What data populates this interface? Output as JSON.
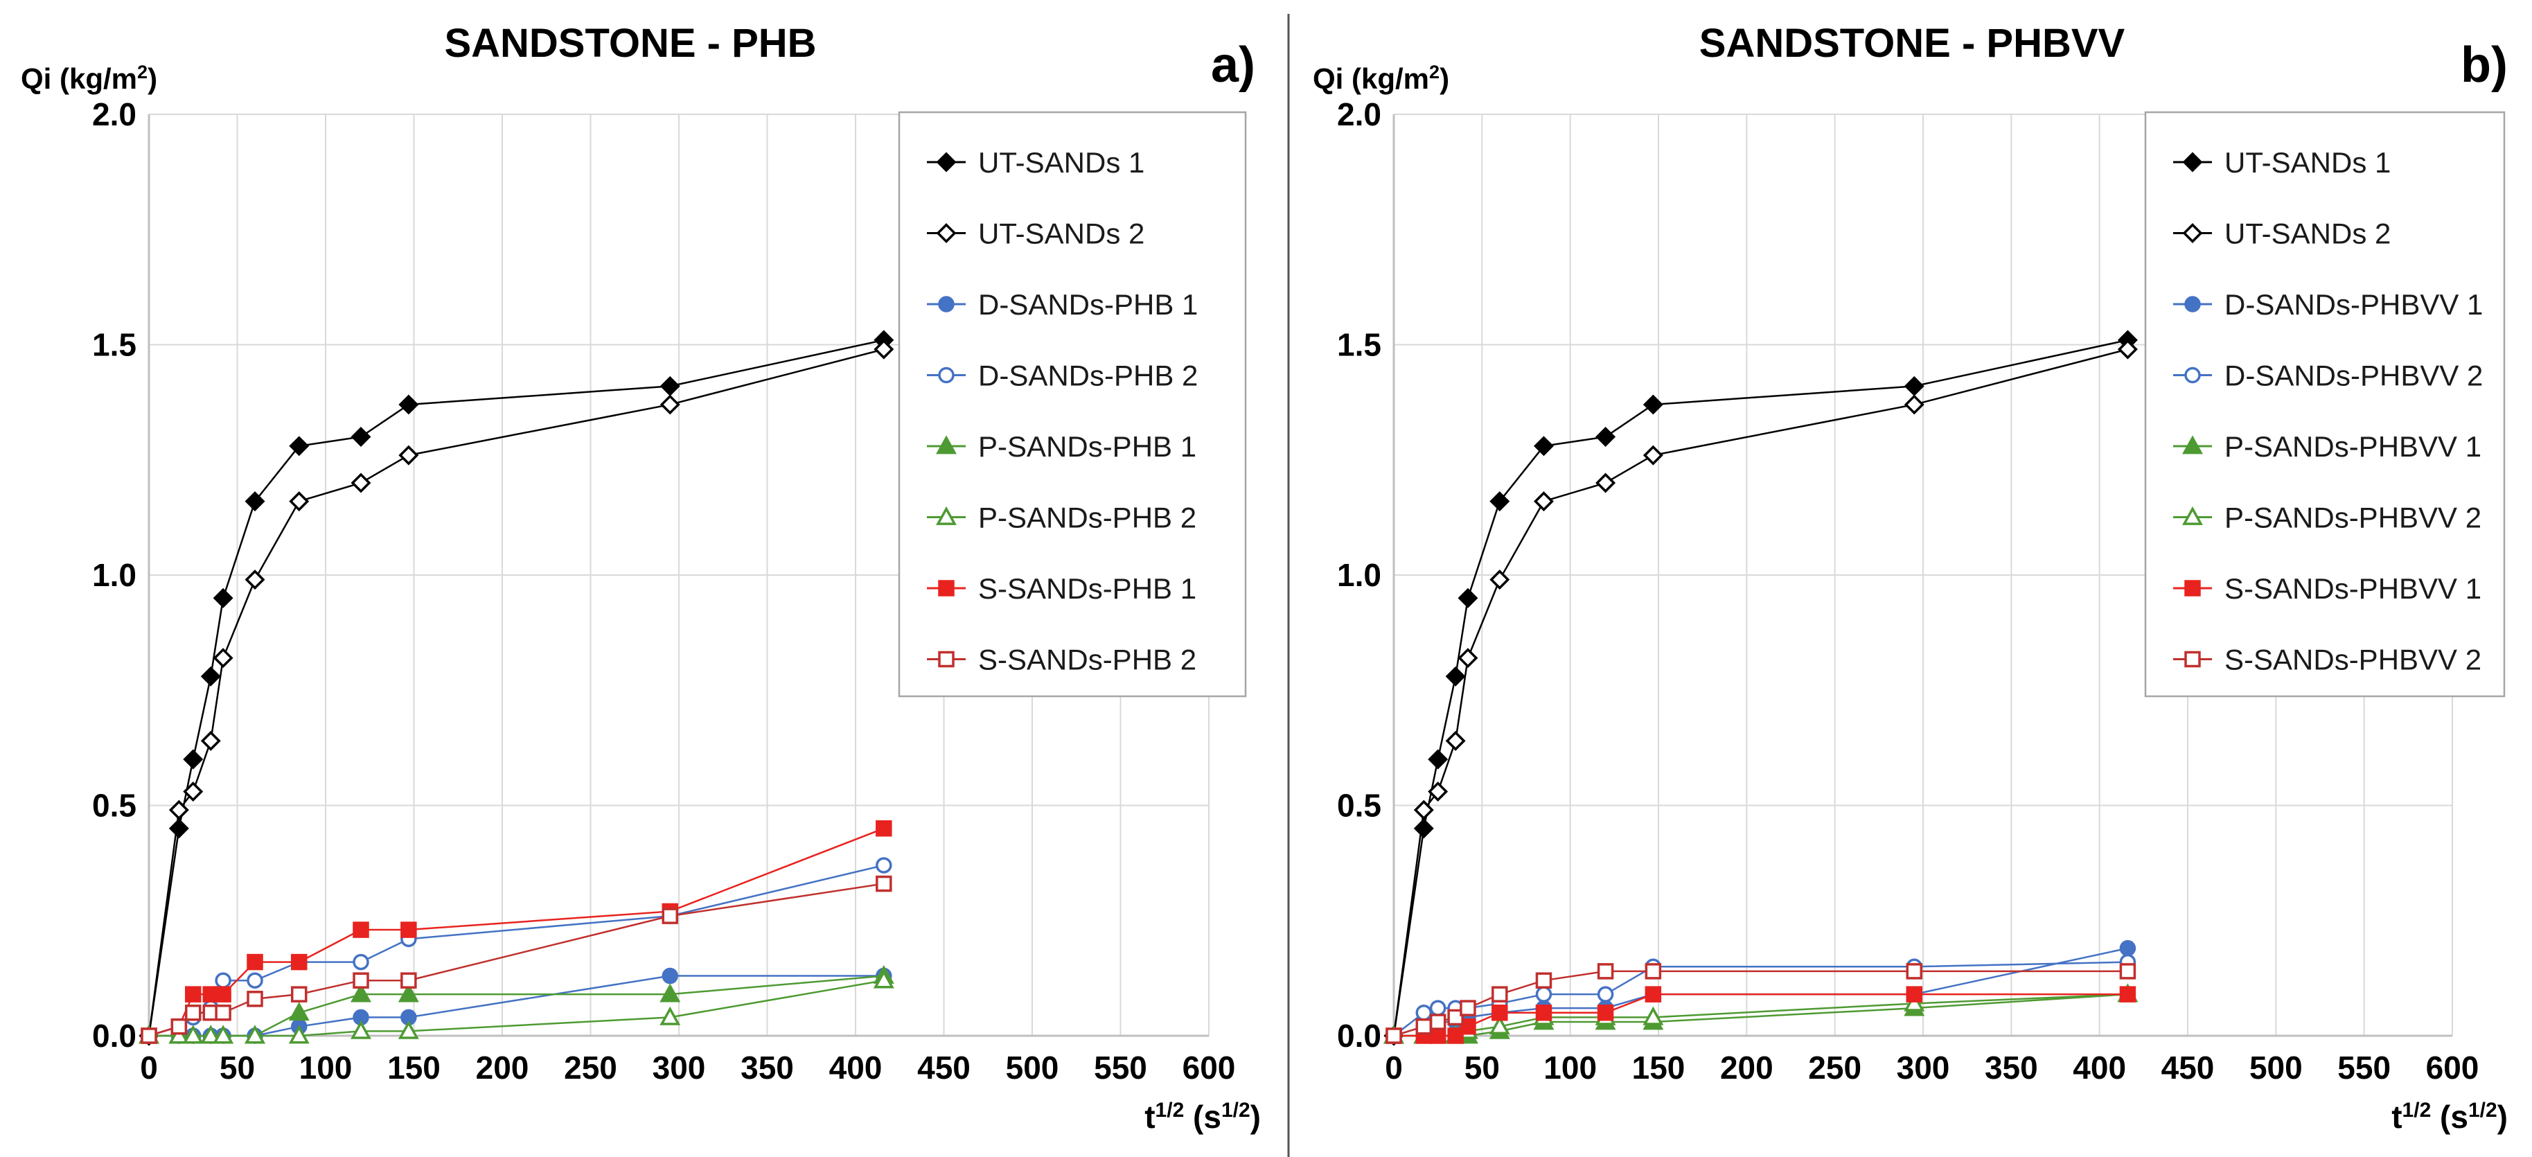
{
  "chart_data": [
    {
      "panel_label": "a)",
      "type": "line",
      "title": "SANDSTONE - PHB",
      "ylabel": "Qi (kg/m",
      "ylabel_sup": "2",
      "ylabel_close": ")",
      "xlabel_base": "t",
      "xlabel_sup": "1/2",
      "xlabel_mid": " (s",
      "xlabel_sup2": "1/2",
      "xlabel_close": ")",
      "xlim": [
        0,
        600
      ],
      "ylim": [
        0,
        2.0
      ],
      "xticks": [
        0,
        50,
        100,
        150,
        200,
        250,
        300,
        350,
        400,
        450,
        500,
        550,
        600
      ],
      "yticks": [
        "0.0",
        "0.5",
        "1.0",
        "1.5",
        "2.0"
      ],
      "grid": true,
      "legend_position": "top-right",
      "series": [
        {
          "name": "UT-SANDs 1",
          "color": "#000000",
          "marker": "diamond-filled",
          "x": [
            0,
            17,
            25,
            35,
            42,
            60,
            85,
            120,
            147,
            295,
            416
          ],
          "y": [
            0,
            0.45,
            0.6,
            0.78,
            0.95,
            1.16,
            1.28,
            1.3,
            1.37,
            1.41,
            1.51
          ]
        },
        {
          "name": "UT-SANDs 2",
          "color": "#000000",
          "marker": "diamond-open",
          "x": [
            0,
            17,
            25,
            35,
            42,
            60,
            85,
            120,
            147,
            295,
            416
          ],
          "y": [
            0,
            0.49,
            0.53,
            0.64,
            0.82,
            0.99,
            1.16,
            1.2,
            1.26,
            1.37,
            1.49
          ]
        },
        {
          "name": "D-SANDs-PHB 1",
          "color": "#4472c4",
          "marker": "circle-filled",
          "x": [
            0,
            17,
            25,
            35,
            42,
            60,
            85,
            120,
            147,
            295,
            416
          ],
          "y": [
            0,
            0,
            0,
            0,
            0,
            0,
            0.02,
            0.04,
            0.04,
            0.13,
            0.13
          ]
        },
        {
          "name": "D-SANDs-PHB 2",
          "color": "#4472c4",
          "marker": "circle-open",
          "x": [
            0,
            17,
            25,
            35,
            42,
            60,
            85,
            120,
            147,
            295,
            416
          ],
          "y": [
            0,
            0.02,
            0.04,
            0.06,
            0.12,
            0.12,
            0.16,
            0.16,
            0.21,
            0.26,
            0.37
          ]
        },
        {
          "name": "P-SANDs-PHB 1",
          "color": "#4e9a32",
          "marker": "triangle-filled",
          "x": [
            0,
            17,
            25,
            35,
            42,
            60,
            85,
            120,
            147,
            295,
            416
          ],
          "y": [
            0,
            0,
            0,
            0,
            0,
            0,
            0.05,
            0.09,
            0.09,
            0.09,
            0.13
          ]
        },
        {
          "name": "P-SANDs-PHB 2",
          "color": "#4e9a32",
          "marker": "triangle-open",
          "x": [
            0,
            17,
            25,
            35,
            42,
            60,
            85,
            120,
            147,
            295,
            416
          ],
          "y": [
            0,
            0,
            0,
            0,
            0,
            0,
            0,
            0.01,
            0.01,
            0.04,
            0.12
          ]
        },
        {
          "name": "S-SANDs-PHB 1",
          "color": "#e8231f",
          "marker": "square-filled",
          "x": [
            0,
            17,
            25,
            35,
            42,
            60,
            85,
            120,
            147,
            295,
            416
          ],
          "y": [
            0,
            0.02,
            0.09,
            0.09,
            0.09,
            0.16,
            0.16,
            0.23,
            0.23,
            0.27,
            0.45
          ]
        },
        {
          "name": "S-SANDs-PHB 2",
          "color": "#c0302e",
          "marker": "square-open",
          "x": [
            0,
            17,
            25,
            35,
            42,
            60,
            85,
            120,
            147,
            295,
            416
          ],
          "y": [
            0,
            0.02,
            0.05,
            0.05,
            0.05,
            0.08,
            0.09,
            0.12,
            0.12,
            0.26,
            0.33
          ]
        }
      ]
    },
    {
      "panel_label": "b)",
      "type": "line",
      "title": "SANDSTONE - PHBVV",
      "ylabel": "Qi (kg/m",
      "ylabel_sup": "2",
      "ylabel_close": ")",
      "xlabel_base": "t",
      "xlabel_sup": "1/2",
      "xlabel_mid": " (s",
      "xlabel_sup2": "1/2",
      "xlabel_close": ")",
      "xlim": [
        0,
        600
      ],
      "ylim": [
        0,
        2.0
      ],
      "xticks": [
        0,
        50,
        100,
        150,
        200,
        250,
        300,
        350,
        400,
        450,
        500,
        550,
        600
      ],
      "yticks": [
        "0.0",
        "0.5",
        "1.0",
        "1.5",
        "2.0"
      ],
      "grid": true,
      "legend_position": "top-right",
      "series": [
        {
          "name": "UT-SANDs 1",
          "color": "#000000",
          "marker": "diamond-filled",
          "x": [
            0,
            17,
            25,
            35,
            42,
            60,
            85,
            120,
            147,
            295,
            416
          ],
          "y": [
            0,
            0.45,
            0.6,
            0.78,
            0.95,
            1.16,
            1.28,
            1.3,
            1.37,
            1.41,
            1.51
          ]
        },
        {
          "name": "UT-SANDs 2",
          "color": "#000000",
          "marker": "diamond-open",
          "x": [
            0,
            17,
            25,
            35,
            42,
            60,
            85,
            120,
            147,
            295,
            416
          ],
          "y": [
            0,
            0.49,
            0.53,
            0.64,
            0.82,
            0.99,
            1.16,
            1.2,
            1.26,
            1.37,
            1.49
          ]
        },
        {
          "name": "D-SANDs-PHBVV 1",
          "color": "#4472c4",
          "marker": "circle-filled",
          "x": [
            0,
            17,
            25,
            35,
            42,
            60,
            85,
            120,
            147,
            295,
            416
          ],
          "y": [
            0,
            0.02,
            0.03,
            0.03,
            0.04,
            0.05,
            0.06,
            0.06,
            0.09,
            0.09,
            0.19
          ]
        },
        {
          "name": "D-SANDs-PHBVV 2",
          "color": "#4472c4",
          "marker": "circle-open",
          "x": [
            0,
            17,
            25,
            35,
            42,
            60,
            85,
            120,
            147,
            295,
            416
          ],
          "y": [
            0,
            0.05,
            0.06,
            0.06,
            0.06,
            0.07,
            0.09,
            0.09,
            0.15,
            0.15,
            0.16
          ]
        },
        {
          "name": "P-SANDs-PHBVV 1",
          "color": "#4e9a32",
          "marker": "triangle-filled",
          "x": [
            0,
            17,
            25,
            35,
            42,
            60,
            85,
            120,
            147,
            295,
            416
          ],
          "y": [
            0,
            0,
            0,
            0,
            0,
            0.01,
            0.03,
            0.03,
            0.03,
            0.06,
            0.09
          ]
        },
        {
          "name": "P-SANDs-PHBVV 2",
          "color": "#4e9a32",
          "marker": "triangle-open",
          "x": [
            0,
            17,
            25,
            35,
            42,
            60,
            85,
            120,
            147,
            295,
            416
          ],
          "y": [
            0,
            0,
            0,
            0,
            0.01,
            0.02,
            0.04,
            0.04,
            0.04,
            0.07,
            0.09
          ]
        },
        {
          "name": "S-SANDs-PHBVV 1",
          "color": "#e8231f",
          "marker": "square-filled",
          "x": [
            0,
            17,
            25,
            35,
            42,
            60,
            85,
            120,
            147,
            295,
            416
          ],
          "y": [
            0,
            0,
            0,
            0,
            0.02,
            0.05,
            0.05,
            0.05,
            0.09,
            0.09,
            0.09
          ]
        },
        {
          "name": "S-SANDs-PHBVV 2",
          "color": "#c0302e",
          "marker": "square-open",
          "x": [
            0,
            17,
            25,
            35,
            42,
            60,
            85,
            120,
            147,
            295,
            416
          ],
          "y": [
            0,
            0.02,
            0.03,
            0.04,
            0.06,
            0.09,
            0.12,
            0.14,
            0.14,
            0.14,
            0.14
          ]
        }
      ]
    }
  ]
}
